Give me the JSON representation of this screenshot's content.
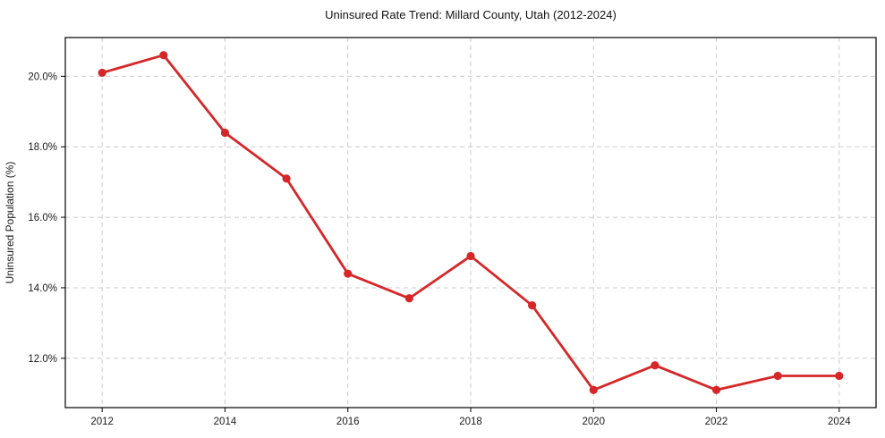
{
  "chart_data": {
    "type": "line",
    "title": "Uninsured Rate Trend: Millard County, Utah (2012-2024)",
    "xlabel": "",
    "ylabel": "Uninsured Population (%)",
    "x": [
      2012,
      2013,
      2014,
      2015,
      2016,
      2017,
      2018,
      2019,
      2020,
      2021,
      2022,
      2023,
      2024
    ],
    "values": [
      20.1,
      20.6,
      18.4,
      17.1,
      14.4,
      13.7,
      14.9,
      13.5,
      11.1,
      11.8,
      11.1,
      11.5,
      11.5
    ],
    "xlim": [
      2011.4,
      2024.6
    ],
    "ylim": [
      10.6,
      21.1
    ],
    "xticks": [
      {
        "value": 2012,
        "label": "2012"
      },
      {
        "value": 2014,
        "label": "2014"
      },
      {
        "value": 2016,
        "label": "2016"
      },
      {
        "value": 2018,
        "label": "2018"
      },
      {
        "value": 2020,
        "label": "2020"
      },
      {
        "value": 2022,
        "label": "2022"
      },
      {
        "value": 2024,
        "label": "2024"
      }
    ],
    "yticks": [
      {
        "value": 12,
        "label": "12.0%"
      },
      {
        "value": 14,
        "label": "14.0%"
      },
      {
        "value": 16,
        "label": "16.0%"
      },
      {
        "value": 18,
        "label": "18.0%"
      },
      {
        "value": 20,
        "label": "20.0%"
      }
    ],
    "grid": true,
    "grid_style": "dashed",
    "legend": "none",
    "colors": {
      "line": "#d62728",
      "marker": "#d62728",
      "grid": "#cccccc",
      "border": "#000000",
      "background": "#ffffff"
    }
  }
}
